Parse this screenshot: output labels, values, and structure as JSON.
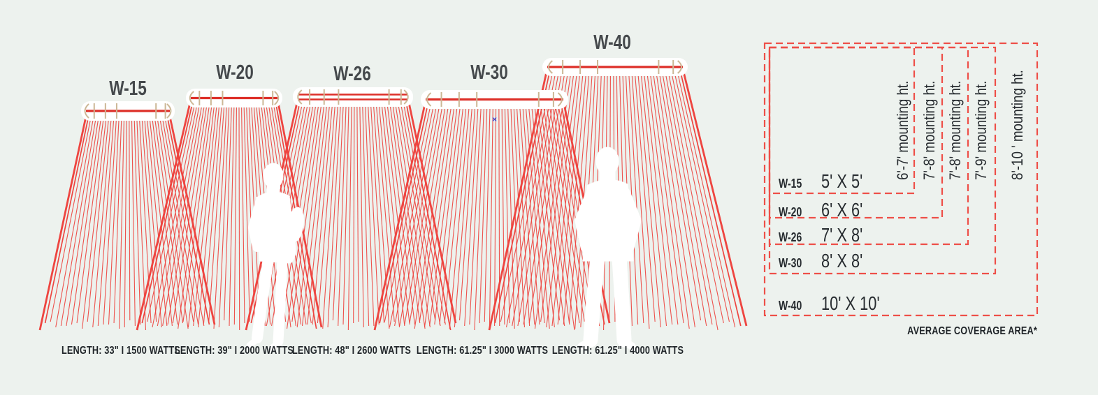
{
  "palette": {
    "background": "#edf2ee",
    "ray_red": "#ee4540",
    "dash_red": "#ee4f48",
    "heater_line_red": "#dd2f28",
    "bracket_tan": "#ccb795",
    "title_gray": "#45494c",
    "text_dark": "#1f2428",
    "table_text": "#272c30",
    "marker_blue": "#3c4fd6",
    "silhouette_white": "#ffffff"
  },
  "heaters": [
    {
      "model": "W-15",
      "spec": "LENGTH: 33\" I 1500 WATTS"
    },
    {
      "model": "W-20",
      "spec": "LENGTH: 39\" I 2000 WATTS"
    },
    {
      "model": "W-26",
      "spec": "LENGTH: 48\" I 2600 WATTS"
    },
    {
      "model": "W-30",
      "spec": "LENGTH: 61.25\" I 3000 WATTS"
    },
    {
      "model": "W-40",
      "spec": "LENGTH: 61.25\" I 4000 WATTS"
    }
  ],
  "coverage_table": {
    "rows": [
      {
        "model": "W-15",
        "coverage": "5' X 5'",
        "mounting_height": "6'-7' mounting ht."
      },
      {
        "model": "W-20",
        "coverage": "6' X 6'",
        "mounting_height": "7'-8' mounting ht."
      },
      {
        "model": "W-26",
        "coverage": "7' X 8'",
        "mounting_height": "7'-8' mounting ht."
      },
      {
        "model": "W-30",
        "coverage": "8' X 8'",
        "mounting_height": "7'-9' mounting ht."
      },
      {
        "model": "W-40",
        "coverage": "10' X 10'",
        "mounting_height": "8'-10 ' mounting ht."
      }
    ],
    "footnote": "AVERAGE COVERAGE AREA*"
  },
  "artifacts": {
    "stray_marker": "×"
  }
}
